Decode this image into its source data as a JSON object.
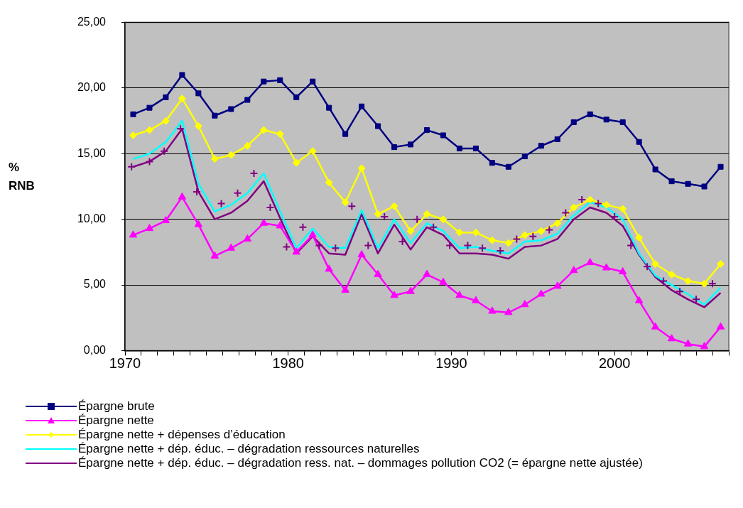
{
  "chart_data": {
    "type": "line",
    "ylabel": "% RNB",
    "xlim": [
      1970,
      2007
    ],
    "xticks": [
      1970,
      {
        "value": 1971,
        "label": null
      },
      {
        "value": 1972,
        "label": null
      },
      {
        "value": 1973,
        "label": null
      },
      {
        "value": 1974,
        "label": null
      },
      {
        "value": 1975,
        "label": null
      },
      {
        "value": 1976,
        "label": null
      },
      {
        "value": 1977,
        "label": null
      },
      {
        "value": 1978,
        "label": null
      },
      {
        "value": 1979,
        "label": null
      },
      1980,
      {
        "value": 1981,
        "label": null
      },
      {
        "value": 1982,
        "label": null
      },
      {
        "value": 1983,
        "label": null
      },
      {
        "value": 1984,
        "label": null
      },
      {
        "value": 1985,
        "label": null
      },
      {
        "value": 1986,
        "label": null
      },
      {
        "value": 1987,
        "label": null
      },
      {
        "value": 1988,
        "label": null
      },
      {
        "value": 1989,
        "label": null
      },
      1990,
      {
        "value": 1991,
        "label": null
      },
      {
        "value": 1992,
        "label": null
      },
      {
        "value": 1993,
        "label": null
      },
      {
        "value": 1994,
        "label": null
      },
      {
        "value": 1995,
        "label": null
      },
      {
        "value": 1996,
        "label": null
      },
      {
        "value": 1997,
        "label": null
      },
      {
        "value": 1998,
        "label": null
      },
      {
        "value": 1999,
        "label": null
      },
      2000,
      {
        "value": 2001,
        "label": null
      },
      {
        "value": 2002,
        "label": null
      },
      {
        "value": 2003,
        "label": null
      },
      {
        "value": 2004,
        "label": null
      },
      {
        "value": 2005,
        "label": null
      },
      {
        "value": 2006,
        "label": null
      },
      {
        "value": 2007,
        "label": null
      }
    ],
    "ylim": [
      0,
      25
    ],
    "yticks": [
      {
        "value": 0,
        "label": "0,00"
      },
      {
        "value": 5,
        "label": "5,00"
      },
      {
        "value": 10,
        "label": "10,00"
      },
      {
        "value": 15,
        "label": "15,00"
      },
      {
        "value": 20,
        "label": "20,00"
      },
      {
        "value": 25,
        "label": "25,00"
      }
    ],
    "grid": "y",
    "legend": "bottom",
    "line_style": "solid",
    "x": [
      1970.5,
      1971.5,
      1972.5,
      1973.5,
      1974.5,
      1975.5,
      1976.5,
      1977.5,
      1978.5,
      1979.5,
      1980.5,
      1981.5,
      1982.5,
      1983.5,
      1984.5,
      1985.5,
      1986.5,
      1987.5,
      1988.5,
      1989.5,
      1990.5,
      1991.5,
      1992.5,
      1993.5,
      1994.5,
      1995.5,
      1996.5,
      1997.5,
      1998.5,
      1999.5,
      2000.5,
      2001.5,
      2002.5,
      2003.5,
      2004.5,
      2005.5,
      2006.5
    ],
    "series": [
      {
        "name": "Épargne brute",
        "color": "#000080",
        "marker": "square",
        "values": [
          18.0,
          18.5,
          19.3,
          21.0,
          19.6,
          17.9,
          18.4,
          19.1,
          20.5,
          20.6,
          19.3,
          20.5,
          18.5,
          16.5,
          18.6,
          17.1,
          15.5,
          15.7,
          16.8,
          16.4,
          15.4,
          15.4,
          14.3,
          14.0,
          14.8,
          15.6,
          16.1,
          17.4,
          18.0,
          17.6,
          17.4,
          15.9,
          13.8,
          12.9,
          12.7,
          12.5,
          14.0
        ]
      },
      {
        "name": " Épargne nette",
        "color": "#ff00ff",
        "marker": "triangle",
        "values": [
          8.8,
          9.3,
          9.9,
          11.7,
          9.6,
          7.2,
          7.8,
          8.5,
          9.7,
          9.5,
          7.5,
          8.8,
          6.2,
          4.6,
          7.3,
          5.8,
          4.2,
          4.5,
          5.8,
          5.2,
          4.2,
          3.8,
          3.0,
          2.9,
          3.5,
          4.3,
          4.9,
          6.1,
          6.7,
          6.3,
          6.0,
          3.8,
          1.8,
          0.9,
          0.5,
          0.3,
          1.8
        ]
      },
      {
        "name": "Épargne nette + dépenses d’éducation",
        "color": "#ffff00",
        "marker": "diamond",
        "values": [
          16.4,
          16.8,
          17.5,
          19.2,
          17.1,
          14.6,
          14.9,
          15.6,
          16.8,
          16.5,
          14.3,
          15.2,
          12.8,
          11.3,
          13.9,
          10.4,
          11.0,
          9.1,
          10.4,
          10.0,
          9.0,
          9.0,
          8.4,
          8.2,
          8.8,
          9.1,
          9.7,
          10.9,
          11.5,
          11.1,
          10.8,
          8.6,
          6.6,
          5.8,
          5.3,
          5.1,
          6.6
        ]
      },
      {
        "name": "Épargne nette + dép. éduc. – dégradation ressources naturelles",
        "color": "#00ffff",
        "marker": "none",
        "values": [
          14.6,
          15.0,
          15.9,
          17.5,
          12.7,
          10.6,
          11.1,
          12.0,
          13.5,
          10.6,
          7.8,
          9.3,
          7.9,
          7.8,
          10.7,
          7.8,
          10.0,
          8.2,
          9.7,
          9.1,
          7.8,
          7.9,
          7.6,
          7.4,
          8.3,
          8.4,
          8.9,
          10.3,
          11.3,
          10.9,
          10.0,
          7.4,
          5.7,
          5.0,
          4.3,
          3.5,
          4.8
        ]
      },
      {
        "name": "Épargne nette + dép. éduc. – dégradation ress. nat. – dommages pollution CO2 (= épargne nette ajustée)",
        "color": "#800080",
        "marker": "none",
        "values": [
          14.0,
          14.4,
          15.2,
          16.9,
          12.1,
          10.0,
          10.5,
          11.4,
          12.9,
          10.1,
          7.4,
          8.7,
          7.4,
          7.3,
          10.4,
          7.4,
          9.6,
          7.7,
          9.4,
          8.8,
          7.4,
          7.4,
          7.3,
          7.0,
          7.9,
          8.0,
          8.5,
          10.0,
          10.9,
          10.5,
          9.5,
          7.3,
          5.6,
          4.6,
          3.9,
          3.3,
          4.4
        ]
      },
      {
        "type": "scatter",
        "color": "#800080",
        "marker": "cross",
        "x": [
          1970.4,
          1971.5,
          1972.4,
          1973.4,
          1974.4,
          1975.9,
          1976.9,
          1977.9,
          1978.9,
          1979.9,
          1980.9,
          1981.9,
          1982.9,
          1983.9,
          1984.9,
          1985.9,
          1987.0,
          1987.9,
          1988.9,
          1989.9,
          1991.0,
          1991.9,
          1993.0,
          1994.0,
          1995.0,
          1996.0,
          1997.0,
          1998.0,
          1999.0,
          2000.0,
          2001.0,
          2002.0,
          2003.0,
          2004.0,
          2005.0,
          2006.0
        ],
        "values": [
          14.0,
          14.4,
          15.2,
          16.9,
          12.1,
          11.2,
          12.0,
          13.5,
          10.9,
          7.9,
          9.4,
          8.0,
          7.8,
          11.0,
          8.0,
          10.2,
          8.3,
          10.0,
          9.4,
          8.0,
          8.0,
          7.8,
          7.6,
          8.5,
          8.7,
          9.2,
          10.5,
          11.5,
          11.2,
          10.2,
          8.0,
          6.4,
          5.3,
          4.5,
          3.9,
          5.1
        ]
      }
    ]
  }
}
